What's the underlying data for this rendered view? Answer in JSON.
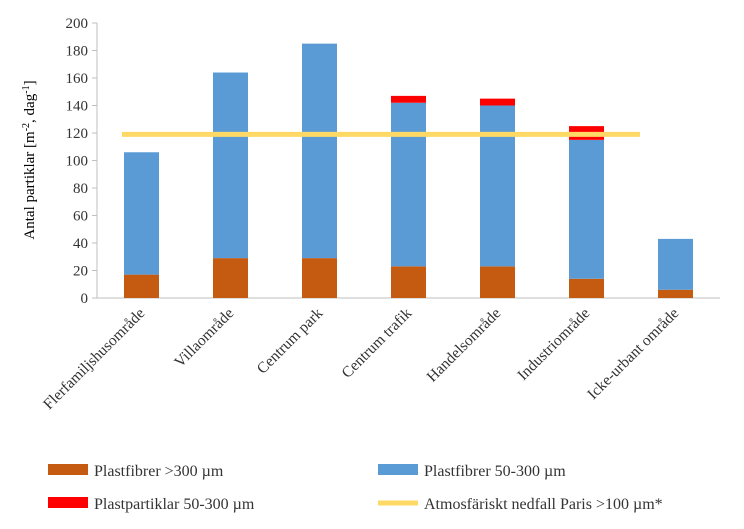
{
  "chart_data": {
    "type": "bar",
    "stacked": true,
    "categories": [
      "Flerfamiljshusområde",
      "Villaområde",
      "Centrum park",
      "Centrum trafik",
      "Handelsområde",
      "Industriområde",
      "Icke-urbant område"
    ],
    "series": [
      {
        "name": "Plastfibrer >300 µm",
        "color": "#C55A11",
        "values": [
          17,
          29,
          29,
          23,
          23,
          14,
          6
        ]
      },
      {
        "name": "Plastfibrer 50-300 µm",
        "color": "#5B9BD5",
        "values": [
          89,
          135,
          156,
          119,
          117,
          101,
          37
        ]
      },
      {
        "name": "Plastpartiklar 50-300 µm",
        "color": "#FF0000",
        "values": [
          0,
          0,
          0,
          5,
          5,
          10,
          0
        ]
      }
    ],
    "reference_line": {
      "name": "Atmosfäriskt nedfall Paris >100 µm*",
      "value": 119,
      "color": "#FFD966"
    },
    "y_axis": {
      "label_main": "Antal partiklar  [m",
      "label_sup1": "-2",
      "label_mid": ", dag",
      "label_sup2": "-1",
      "label_end": "]",
      "ylim": [
        0,
        200
      ],
      "ticks": [
        0,
        20,
        40,
        60,
        80,
        100,
        120,
        140,
        160,
        180,
        200
      ]
    },
    "grid": false,
    "legend_position": "bottom"
  }
}
